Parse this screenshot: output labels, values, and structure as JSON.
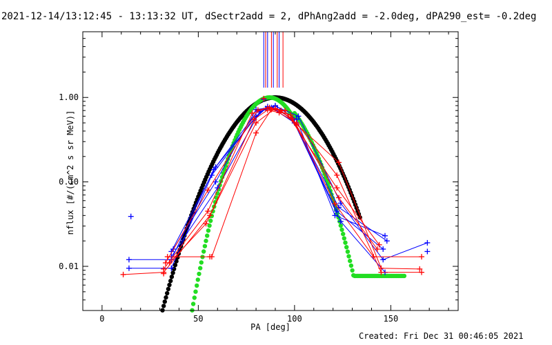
{
  "title": "2021-12-14/13:12:45 - 13:13:32 UT, dSectr2add = 2, dPhAng2add = -2.0deg, dPA290_est= -0.2deg",
  "footer": "Created: Fri Dec 31 00:46:05 2021",
  "chart_data": {
    "type": "line",
    "xlabel": "PA [deg]",
    "ylabel": "nflux [#/(cm^2 s sr MeV)]",
    "xlim": [
      -10,
      185
    ],
    "ylim": [
      0.003,
      6
    ],
    "y_scale": "log",
    "x_ticks": [
      0,
      50,
      100,
      150
    ],
    "y_ticks": [
      {
        "value": 0.01,
        "label": "0.01"
      },
      {
        "value": 0.1,
        "label": "0.10"
      },
      {
        "value": 1,
        "label": "1.00"
      }
    ],
    "vertical_markers": [
      {
        "x": 84,
        "color": "#0000ff"
      },
      {
        "x": 85,
        "color": "#ff0000"
      },
      {
        "x": 86,
        "color": "#0000ff"
      },
      {
        "x": 88,
        "color": "#ff0000"
      },
      {
        "x": 89,
        "color": "#0000ff"
      },
      {
        "x": 91,
        "color": "#ff0000"
      },
      {
        "x": 92,
        "color": "#0000ff"
      },
      {
        "x": 94,
        "color": "#ff0000"
      }
    ],
    "series": [
      {
        "color": "#0000ff",
        "lines": [
          {
            "x": [
              14,
              36,
              57,
              80,
              86,
              91,
              99,
              124,
              147
            ],
            "y": [
              0.0095,
              0.0095,
              0.12,
              0.6,
              0.78,
              0.72,
              0.55,
              0.034,
              0.0085
            ]
          },
          {
            "x": [
              14,
              36,
              58,
              79,
              85,
              93,
              100,
              123,
              148
            ],
            "y": [
              0.012,
              0.012,
              0.14,
              0.55,
              0.74,
              0.7,
              0.5,
              0.05,
              0.02
            ]
          },
          {
            "x": [
              36,
              59,
              81,
              90,
              101,
              121,
              147
            ],
            "y": [
              0.015,
              0.15,
              0.7,
              0.8,
              0.55,
              0.04,
              0.023
            ]
          },
          {
            "x": [
              37,
              59,
              80,
              88,
              100,
              122,
              146
            ],
            "y": [
              0.016,
              0.1,
              0.72,
              0.76,
              0.5,
              0.045,
              0.016
            ]
          },
          {
            "x": [
              36,
              60,
              82,
              90,
              102,
              124,
              146,
              169
            ],
            "y": [
              0.013,
              0.085,
              0.68,
              0.79,
              0.6,
              0.056,
              0.012,
              0.019
            ]
          }
        ],
        "extra_points": [
          {
            "x": [
              15
            ],
            "y": [
              0.039
            ]
          },
          {
            "x": [
              169
            ],
            "y": [
              0.015
            ]
          },
          {
            "x": [
              84
            ],
            "y": [
              0.95
            ]
          }
        ]
      },
      {
        "color": "#ff0000",
        "lines": [
          {
            "x": [
              11,
              32,
              56,
              79,
              86,
              92,
              101,
              122,
              145,
              166
            ],
            "y": [
              0.008,
              0.0085,
              0.04,
              0.55,
              0.71,
              0.66,
              0.5,
              0.12,
              0.0085,
              0.0085
            ]
          },
          {
            "x": [
              32,
              55,
              78,
              86,
              93,
              101,
              123,
              145,
              165
            ],
            "y": [
              0.0093,
              0.045,
              0.65,
              0.75,
              0.7,
              0.48,
              0.17,
              0.0095,
              0.0093
            ]
          },
          {
            "x": [
              34,
              57,
              80,
              88,
              98,
              121,
              141,
              166
            ],
            "y": [
              0.013,
              0.013,
              0.38,
              0.72,
              0.62,
              0.055,
              0.013,
              0.013
            ]
          },
          {
            "x": [
              33,
              55,
              81,
              87,
              95,
              122,
              144
            ],
            "y": [
              0.011,
              0.08,
              0.71,
              0.76,
              0.7,
              0.085,
              0.018
            ]
          },
          {
            "x": [
              35,
              54,
              80,
              90,
              99,
              123,
              143
            ],
            "y": [
              0.011,
              0.032,
              0.5,
              0.74,
              0.56,
              0.065,
              0.016
            ]
          }
        ],
        "extra_points": [
          {
            "x": [
              32
            ],
            "y": [
              0.0082
            ]
          },
          {
            "x": [
              56
            ],
            "y": [
              0.013
            ]
          },
          {
            "x": [
              84
            ],
            "y": [
              0.97
            ]
          }
        ]
      }
    ],
    "fits": [
      {
        "color": "#000000",
        "type": "gaussian",
        "center": 90,
        "sigma": 17.2,
        "x_range": [
          20,
          134.5
        ]
      },
      {
        "color": "#22dd22",
        "type": "gaussian",
        "center": 87,
        "sigma": 11.8,
        "x_range": [
          45,
          100
        ]
      },
      {
        "color": "#22dd22",
        "type": "gaussian_plateau",
        "center": 87,
        "sigma": 14,
        "plateau": 0.0077,
        "x_range": [
          100,
          157
        ]
      }
    ]
  }
}
